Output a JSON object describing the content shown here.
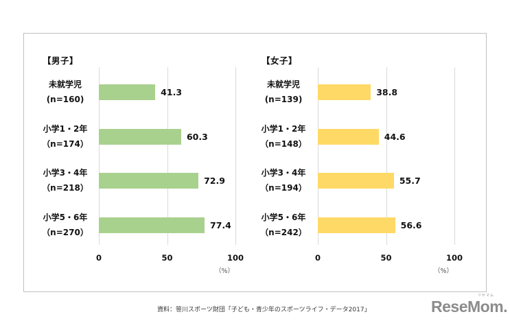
{
  "chart_data": [
    {
      "type": "bar",
      "orientation": "horizontal",
      "title": "【男子】",
      "categories": [
        "未就学児 (n=160)",
        "小学1・2年 (n=174)",
        "小学3・4年 (n=218)",
        "小学5・6年 (n=270)"
      ],
      "values": [
        41.3,
        60.3,
        72.9,
        77.4
      ],
      "xlabel": "(%)",
      "ylabel": "",
      "xlim": [
        0,
        100
      ],
      "xticks": [
        0,
        50,
        100
      ],
      "grid": true,
      "color": "#A9D18E"
    },
    {
      "type": "bar",
      "orientation": "horizontal",
      "title": "【女子】",
      "categories": [
        "未就学児 (n=139)",
        "小学1・2年 (n=148)",
        "小学3・4年 (n=194)",
        "小学5・6年 (n=242)"
      ],
      "values": [
        38.8,
        44.6,
        55.7,
        56.6
      ],
      "xlabel": "(%)",
      "ylabel": "",
      "xlim": [
        0,
        100
      ],
      "xticks": [
        0,
        50,
        100
      ],
      "grid": true,
      "color": "#FFD966"
    }
  ],
  "panels": [
    {
      "title": "【男子】",
      "color": "#A9D18E",
      "rows": [
        {
          "line1": "未就学児",
          "line2": "(n=160)",
          "value": 41.3,
          "label": "41.3"
        },
        {
          "line1": "小学1・2年",
          "line2": "（n=174）",
          "value": 60.3,
          "label": "60.3"
        },
        {
          "line1": "小学3・4年",
          "line2": "（n=218）",
          "value": 72.9,
          "label": "72.9"
        },
        {
          "line1": "小学5・6年",
          "line2": "（n=270）",
          "value": 77.4,
          "label": "77.4"
        }
      ],
      "ticks": [
        "0",
        "50",
        "100"
      ],
      "unit": "（%）"
    },
    {
      "title": "【女子】",
      "color": "#FFD966",
      "rows": [
        {
          "line1": "未就学児",
          "line2": "(n=139)",
          "value": 38.8,
          "label": "38.8"
        },
        {
          "line1": "小学1・2年",
          "line2": "（n=148）",
          "value": 44.6,
          "label": "44.6"
        },
        {
          "line1": "小学3・4年",
          "line2": "（n=194）",
          "value": 55.7,
          "label": "55.7"
        },
        {
          "line1": "小学5・6年",
          "line2": "（n=242）",
          "value": 56.6,
          "label": "56.6"
        }
      ],
      "ticks": [
        "0",
        "50",
        "100"
      ],
      "unit": "（%）"
    }
  ],
  "source": "資料：笹川スポーツ財団「子ども・青少年のスポーツライフ・データ2017」",
  "logo": {
    "text": "ReseMom.",
    "ruby": "リセマム"
  }
}
